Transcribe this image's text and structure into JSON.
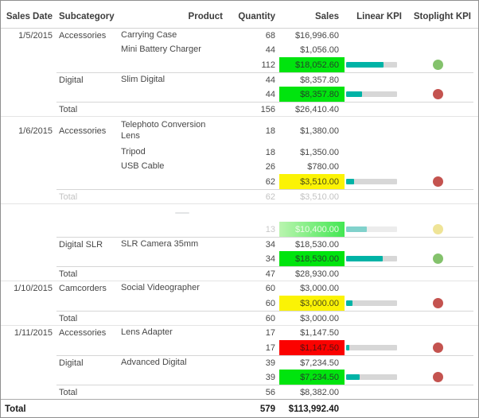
{
  "report": {
    "title": "Sales KPI report table",
    "columns": [
      "Sales Date",
      "Subcategory",
      "Product",
      "Quantity",
      "Sales",
      "Linear KPI",
      "Stoplight KPI"
    ],
    "colors": {
      "kpi_bar_fill": "#00b3a6",
      "kpi_bar_track": "#d7d7d7",
      "highlight_green": "#00e40e",
      "highlight_yellow": "#fbf305",
      "highlight_red": "#fb0200",
      "dot_green": "#84c26c",
      "dot_red": "#c4534f",
      "dot_yellow": "#ecdf85"
    }
  },
  "chart_data": {
    "type": "table",
    "title": "Sales by Date / Subcategory / Product with Linear and Stoplight KPIs",
    "columns": [
      "Sales Date",
      "Subcategory",
      "Product",
      "Quantity",
      "Sales",
      "Linear KPI",
      "Stoplight KPI"
    ],
    "grand_total": {
      "label": "Total",
      "quantity": 579,
      "sales": "$113,992.40"
    }
  },
  "rows": [
    {
      "type": "detail",
      "date": "1/5/2015",
      "subcategory": "Accessories",
      "product": "Carrying Case",
      "qty": "68",
      "sales": "$16,996.60"
    },
    {
      "type": "detail",
      "product": "Mini Battery Charger",
      "qty": "44",
      "sales": "$1,056.00"
    },
    {
      "type": "subtotal",
      "qty": "112",
      "sales": "$18,052.60",
      "highlight": "green",
      "bar_pct": 74,
      "dot": "green"
    },
    {
      "type": "detail",
      "subcategory": "Digital",
      "product": "Slim Digital",
      "qty": "44",
      "sales": "$8,357.80",
      "rule": "sub"
    },
    {
      "type": "subtotal",
      "qty": "44",
      "sales": "$8,357.80",
      "highlight": "green",
      "bar_pct": 31,
      "dot": "red"
    },
    {
      "type": "grouptotal",
      "label": "Total",
      "qty": "156",
      "sales": "$26,410.40",
      "rule": "sub",
      "group_end": true
    },
    {
      "type": "detail",
      "date": "1/6/2015",
      "subcategory": "Accessories",
      "product": "Telephoto Conversion Lens",
      "qty": "18",
      "sales": "$1,380.00",
      "tall": true
    },
    {
      "type": "detail",
      "product": "Tripod",
      "qty": "18",
      "sales": "$1,350.00"
    },
    {
      "type": "detail",
      "product": "USB Cable",
      "qty": "26",
      "sales": "$780.00"
    },
    {
      "type": "subtotal",
      "qty": "62",
      "sales": "$3,510.00",
      "highlight": "yellow",
      "bar_pct": 15,
      "dot": "red"
    },
    {
      "type": "grouptotal",
      "label": "Total",
      "qty": "62",
      "sales": "$3,510.00",
      "rule": "sub",
      "faded": true,
      "group_end": true
    },
    {
      "type": "ghostrow"
    },
    {
      "type": "subtotal",
      "qty": "13",
      "sales": "$10,400.00",
      "highlight": "ghostgreen",
      "bar_pct": 40,
      "dot": "yellow",
      "ghost": true
    },
    {
      "type": "detail",
      "subcategory": "Digital SLR",
      "product": "SLR Camera 35mm",
      "qty": "34",
      "sales": "$18,530.00",
      "rule": "sub"
    },
    {
      "type": "subtotal",
      "qty": "34",
      "sales": "$18,530.00",
      "highlight": "green",
      "bar_pct": 72,
      "dot": "green"
    },
    {
      "type": "grouptotal",
      "label": "Total",
      "qty": "47",
      "sales": "$28,930.00",
      "rule": "sub",
      "group_end": true
    },
    {
      "type": "detail",
      "date": "1/10/2015",
      "subcategory": "Camcorders",
      "product": "Social Videographer",
      "qty": "60",
      "sales": "$3,000.00"
    },
    {
      "type": "subtotal",
      "qty": "60",
      "sales": "$3,000.00",
      "highlight": "yellow",
      "bar_pct": 13,
      "dot": "red"
    },
    {
      "type": "grouptotal",
      "label": "Total",
      "qty": "60",
      "sales": "$3,000.00",
      "rule": "sub",
      "group_end": true
    },
    {
      "type": "detail",
      "date": "1/11/2015",
      "subcategory": "Accessories",
      "product": "Lens Adapter",
      "qty": "17",
      "sales": "$1,147.50"
    },
    {
      "type": "subtotal",
      "qty": "17",
      "sales": "$1,147.50",
      "highlight": "red",
      "bar_pct": 6,
      "dot": "red"
    },
    {
      "type": "detail",
      "subcategory": "Digital",
      "product": "Advanced Digital",
      "qty": "39",
      "sales": "$7,234.50",
      "rule": "sub"
    },
    {
      "type": "subtotal",
      "qty": "39",
      "sales": "$7,234.50",
      "highlight": "green",
      "bar_pct": 27,
      "dot": "red"
    },
    {
      "type": "grouptotal",
      "label": "Total",
      "qty": "56",
      "sales": "$8,382.00",
      "rule": "sub"
    },
    {
      "type": "grand",
      "label": "Total",
      "qty": "579",
      "sales": "$113,992.40"
    }
  ]
}
